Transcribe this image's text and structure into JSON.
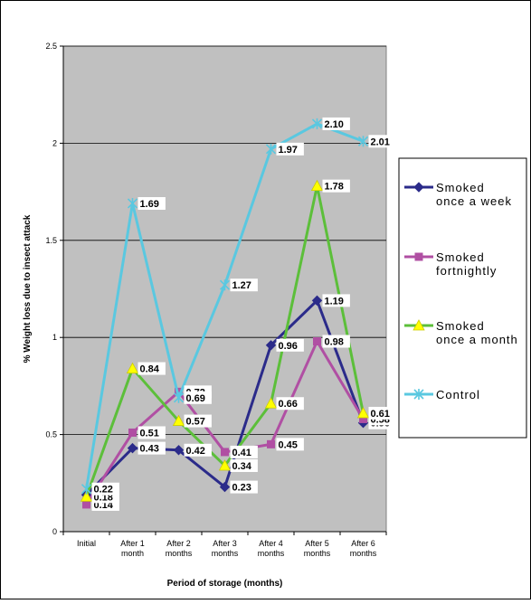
{
  "chart_data": {
    "type": "line",
    "title": "",
    "xlabel": "Period of storage (months)",
    "ylabel": "% Weight loss due to insect attack",
    "ylim": [
      0,
      2.5
    ],
    "yticks": [
      "0",
      "0.5",
      "1",
      "1.5",
      "2",
      "2.5"
    ],
    "grid": true,
    "legend": "right",
    "categories": [
      [
        "Initial"
      ],
      [
        "After 1",
        "month"
      ],
      [
        "After 2",
        "months"
      ],
      [
        "After 3",
        "months"
      ],
      [
        "After 4",
        "months"
      ],
      [
        "After 5",
        "months"
      ],
      [
        "After 6",
        "months"
      ]
    ],
    "series": [
      {
        "name": [
          "Smoked",
          "once a week"
        ],
        "color": "#2b2b8a",
        "marker": "diamond",
        "values": [
          0.19,
          0.43,
          0.42,
          0.23,
          0.96,
          1.19,
          0.56
        ],
        "labels": [
          "0.19",
          "0.43",
          "0.42",
          "0.23",
          "0.96",
          "1.19",
          "0.56"
        ]
      },
      {
        "name": [
          "Smoked",
          "fortnightly"
        ],
        "color": "#b04fa3",
        "marker": "square",
        "values": [
          0.14,
          0.51,
          0.72,
          0.41,
          0.45,
          0.98,
          0.58
        ],
        "labels": [
          "0.14",
          "0.51",
          "0.72",
          "0.41",
          "0.45",
          "0.98",
          "0.58"
        ]
      },
      {
        "name": [
          "Smoked",
          "once a month"
        ],
        "color": "#5cbf3a",
        "marker": "triangle",
        "values": [
          0.18,
          0.84,
          0.57,
          0.34,
          0.66,
          1.78,
          0.61
        ],
        "labels": [
          "0.18",
          "0.84",
          "0.57",
          "0.34",
          "0.66",
          "1.78",
          "0.61"
        ]
      },
      {
        "name": [
          "Control"
        ],
        "color": "#5ac8e0",
        "marker": "x",
        "values": [
          0.22,
          1.69,
          0.69,
          1.27,
          1.97,
          2.1,
          2.01
        ],
        "labels": [
          "0.22",
          "1.69",
          "0.69",
          "1.27",
          "1.97",
          "2.10",
          "2.01"
        ]
      }
    ]
  }
}
